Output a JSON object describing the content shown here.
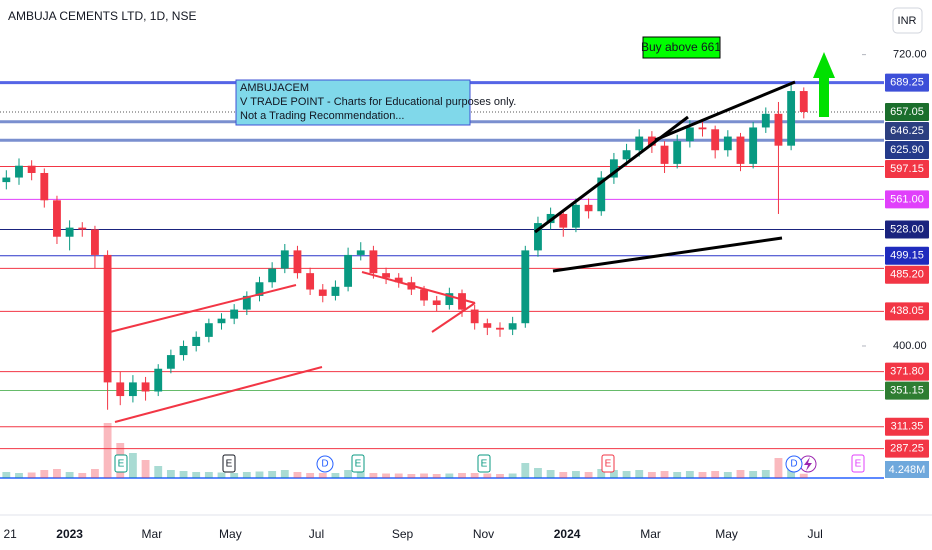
{
  "chart_data": {
    "type": "candlestick",
    "title": "AMBUJA CEMENTS LTD, 1D, NSE",
    "currency": "INR",
    "categories": [
      null,
      null,
      null,
      null,
      null,
      null,
      null,
      null,
      null,
      null,
      null,
      null,
      null,
      null,
      null,
      null,
      null,
      null,
      null,
      null,
      null,
      null,
      null,
      null,
      null,
      null,
      null,
      null,
      null,
      null,
      null,
      null,
      null,
      null,
      null,
      null,
      null,
      null,
      null,
      null,
      null,
      null,
      null,
      null,
      null,
      null,
      null,
      null,
      null,
      null,
      null,
      null,
      null,
      null,
      null,
      null,
      null,
      null,
      null,
      null,
      null,
      null,
      null,
      null
    ],
    "open": [
      580,
      585,
      598,
      590,
      560,
      520,
      530,
      528,
      500,
      360,
      345,
      360,
      350,
      375,
      390,
      400,
      410,
      425,
      430,
      440,
      455,
      470,
      485,
      505,
      480,
      462,
      455,
      465,
      500,
      505,
      480,
      475,
      470,
      462,
      450,
      445,
      458,
      440,
      425,
      420,
      418,
      425,
      505,
      535,
      545,
      530,
      555,
      548,
      585,
      605,
      615,
      630,
      620,
      600,
      625,
      640,
      638,
      615,
      630,
      600,
      640,
      655,
      620,
      680
    ],
    "high": [
      593,
      606,
      604,
      595,
      565,
      538,
      536,
      532,
      505,
      372,
      368,
      366,
      380,
      396,
      406,
      416,
      430,
      436,
      446,
      460,
      476,
      492,
      512,
      510,
      486,
      468,
      472,
      508,
      514,
      510,
      486,
      480,
      476,
      466,
      455,
      464,
      462,
      445,
      430,
      426,
      432,
      510,
      542,
      552,
      550,
      562,
      562,
      592,
      612,
      622,
      638,
      636,
      625,
      632,
      648,
      648,
      642,
      637,
      634,
      646,
      662,
      668,
      690,
      684
    ],
    "low": [
      572,
      577,
      582,
      552,
      512,
      505,
      520,
      485,
      330,
      335,
      338,
      340,
      345,
      370,
      384,
      394,
      404,
      418,
      424,
      434,
      449,
      464,
      480,
      474,
      456,
      448,
      450,
      460,
      494,
      474,
      468,
      464,
      456,
      444,
      438,
      440,
      432,
      418,
      412,
      410,
      412,
      420,
      498,
      528,
      520,
      525,
      540,
      543,
      578,
      598,
      608,
      612,
      590,
      595,
      618,
      630,
      606,
      608,
      592,
      595,
      634,
      545,
      615,
      650
    ],
    "close": [
      585,
      598,
      590,
      560,
      520,
      530,
      528,
      500,
      360,
      345,
      360,
      350,
      375,
      390,
      400,
      410,
      425,
      430,
      440,
      455,
      470,
      485,
      505,
      480,
      462,
      455,
      465,
      500,
      505,
      480,
      475,
      470,
      462,
      450,
      445,
      458,
      440,
      425,
      420,
      418,
      425,
      505,
      535,
      545,
      530,
      555,
      548,
      585,
      605,
      615,
      630,
      620,
      600,
      625,
      640,
      638,
      615,
      630,
      600,
      640,
      655,
      620,
      680,
      657
    ],
    "up_color": "#089981",
    "down_color": "#f23645",
    "volume": {
      "values": [
        6000000,
        5000000,
        5500000,
        8000000,
        9000000,
        6000000,
        5000000,
        9000000,
        55000000,
        35000000,
        25000000,
        18000000,
        12000000,
        8000000,
        7000000,
        6000000,
        6000000,
        5500000,
        5000000,
        6000000,
        6500000,
        7000000,
        8000000,
        6000000,
        5000000,
        5000000,
        5000000,
        8000000,
        7000000,
        5000000,
        4500000,
        4500000,
        4000000,
        4500000,
        4000000,
        4500000,
        5000000,
        5000000,
        4500000,
        4000000,
        4500000,
        15000000,
        10000000,
        8000000,
        6000000,
        7000000,
        6000000,
        9000000,
        8000000,
        7000000,
        8000000,
        6000000,
        7000000,
        6000000,
        7000000,
        6000000,
        7000000,
        6000000,
        8000000,
        7000000,
        8000000,
        20000000,
        12000000,
        4248000
      ],
      "last_label": "4.248M",
      "vlim": [
        0,
        60000000
      ]
    },
    "xlim": [
      -0.5,
      67.6
    ],
    "xticks": [
      {
        "value": 0.3,
        "label": "21"
      },
      {
        "value": 5.0,
        "label": "2023"
      },
      {
        "value": 11.5,
        "label": "Mar"
      },
      {
        "value": 17.7,
        "label": "May"
      },
      {
        "value": 24.5,
        "label": "Jul"
      },
      {
        "value": 31.3,
        "label": "Sep"
      },
      {
        "value": 37.7,
        "label": "Nov"
      },
      {
        "value": 44.3,
        "label": "2024"
      },
      {
        "value": 50.9,
        "label": "Mar"
      },
      {
        "value": 56.9,
        "label": "May"
      },
      {
        "value": 63.9,
        "label": "Jul"
      }
    ],
    "ylim": [
      255,
      780
    ],
    "yticks": [
      {
        "value": 720,
        "label": "720.00"
      },
      {
        "value": 400,
        "label": "400.00"
      }
    ],
    "levels": [
      {
        "value": 689.25,
        "label": "689.25",
        "color": "#3d4fd8",
        "line": "#5565e6",
        "width": 3
      },
      {
        "value": 657.05,
        "label": "657.05",
        "color": "#1b6e2c",
        "line": "#555555",
        "width": 1,
        "dotted": true
      },
      {
        "value": 646.25,
        "label": "646.25",
        "color": "#2c3f80",
        "line": "#7a8fcf",
        "width": 3
      },
      {
        "value": 625.9,
        "label": "625.90",
        "color": "#243a8a",
        "line": "#7a8fcf",
        "width": 3
      },
      {
        "value": 597.15,
        "label": "597.15",
        "color": "#f23645",
        "line": "#f23645",
        "width": 1
      },
      {
        "value": 561,
        "label": "561.00",
        "color": "#e040fb",
        "line": "#e040fb",
        "width": 1
      },
      {
        "value": 528,
        "label": "528.00",
        "color": "#1a237e",
        "line": "#1a237e",
        "width": 1
      },
      {
        "value": 499.15,
        "label": "499.15",
        "color": "#1f2bbd",
        "line": "#2a35c9",
        "width": 1
      },
      {
        "value": 485.2,
        "label": "485.20",
        "color": "#f23645",
        "line": "#f23645",
        "width": 1
      },
      {
        "value": 438.05,
        "label": "438.05",
        "color": "#f23645",
        "line": "#f23645",
        "width": 1
      },
      {
        "value": 371.8,
        "label": "371.80",
        "color": "#f23645",
        "line": "#f23645",
        "width": 1
      },
      {
        "value": 351.15,
        "label": "351.15",
        "color": "#2e7d32",
        "line": "#66bb6a",
        "width": 1
      },
      {
        "value": 311.35,
        "label": "311.35",
        "color": "#f23645",
        "line": "#f23645",
        "width": 1
      },
      {
        "value": 287.25,
        "label": "287.25",
        "color": "#f23645",
        "line": "#f23645",
        "width": 1
      }
    ],
    "annotations": {
      "buy": "Buy above 661",
      "note": [
        "AMBUJACEM",
        "V TRADE POINT - Charts for Educational purposes only.",
        "Not a Trading Recommendation..."
      ]
    },
    "events": [
      {
        "label": "E",
        "color": "#089981"
      },
      {
        "label": "E",
        "color": "#131722"
      },
      {
        "label": "D",
        "color": "#2962ff"
      },
      {
        "label": "E",
        "color": "#089981"
      },
      {
        "label": "E",
        "color": "#089981"
      },
      {
        "label": "E",
        "color": "#f23645"
      },
      {
        "label": "D",
        "color": "#2962ff"
      },
      {
        "label": "E",
        "color": "#e040fb"
      }
    ]
  }
}
